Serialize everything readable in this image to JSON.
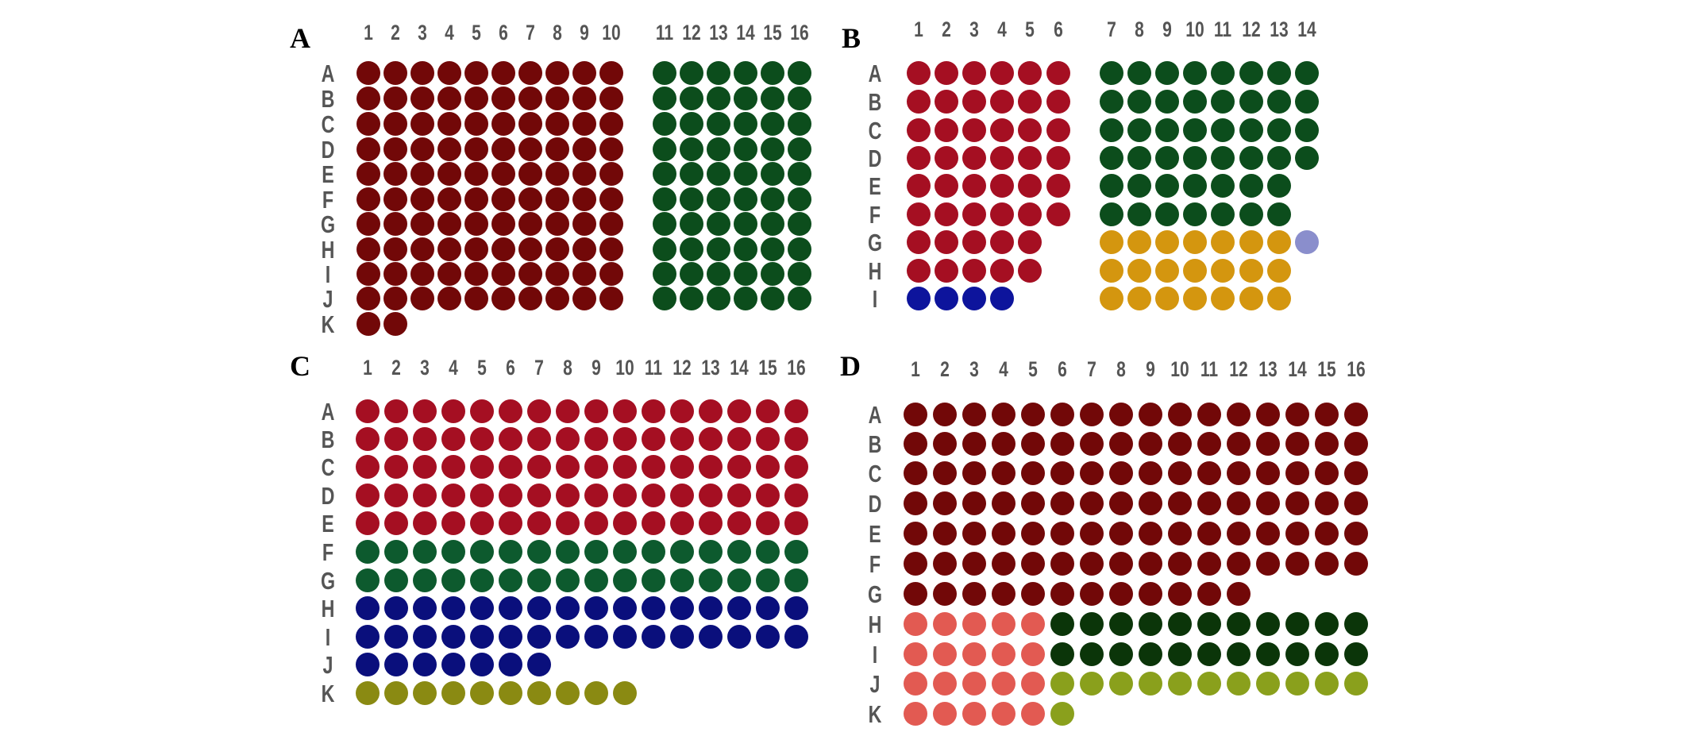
{
  "colors": {
    "dark_red": "#720808",
    "crimson": "#a50f22",
    "salmon": "#e25a52",
    "dark_green": "#0c4d1c",
    "very_dark_green": "#0b3509",
    "teal_green": "#0d5a2e",
    "navy": "#0a0f7c",
    "blue": "#0d149c",
    "amber": "#d4960f",
    "olive": "#8a8a12",
    "yellow_green": "#8aa01c",
    "lavender": "#8a8ecc"
  },
  "panels": [
    {
      "letter": "A",
      "columns": [
        "1",
        "2",
        "3",
        "4",
        "5",
        "6",
        "7",
        "8",
        "9",
        "10",
        "11",
        "12",
        "13",
        "14",
        "15",
        "16"
      ],
      "rows": [
        "A",
        "B",
        "C",
        "D",
        "E",
        "F",
        "G",
        "H",
        "I",
        "J",
        "K"
      ],
      "groups": [
        {
          "color": "dark_red",
          "rows": "A-J",
          "columns": "1-10"
        },
        {
          "color": "dark_red",
          "rows": "K",
          "columns": "1-2"
        },
        {
          "color": "dark_green",
          "rows": "A-J",
          "columns": "11-16"
        }
      ]
    },
    {
      "letter": "B",
      "columns": [
        "1",
        "2",
        "3",
        "4",
        "5",
        "6",
        "7",
        "8",
        "9",
        "10",
        "11",
        "12",
        "13",
        "14"
      ],
      "rows": [
        "A",
        "B",
        "C",
        "D",
        "E",
        "F",
        "G",
        "H",
        "I"
      ],
      "groups": [
        {
          "color": "crimson",
          "rows": "A-F",
          "columns": "1-6"
        },
        {
          "color": "crimson",
          "rows": "G-H",
          "columns": "1-5"
        },
        {
          "color": "blue",
          "rows": "I",
          "columns": "1-4"
        },
        {
          "color": "dark_green",
          "rows": "A-D",
          "columns": "7-14"
        },
        {
          "color": "dark_green",
          "rows": "E-F",
          "columns": "7-13"
        },
        {
          "color": "amber",
          "rows": "G-I",
          "columns": "7-13"
        },
        {
          "color": "lavender",
          "rows": "G",
          "columns": "14"
        }
      ]
    },
    {
      "letter": "C",
      "columns": [
        "1",
        "2",
        "3",
        "4",
        "5",
        "6",
        "7",
        "8",
        "9",
        "10",
        "11",
        "12",
        "13",
        "14",
        "15",
        "16"
      ],
      "rows": [
        "A",
        "B",
        "C",
        "D",
        "E",
        "F",
        "G",
        "H",
        "I",
        "J",
        "K"
      ],
      "groups": [
        {
          "color": "crimson",
          "rows": "A-E",
          "columns": "1-16"
        },
        {
          "color": "teal_green",
          "rows": "F-G",
          "columns": "1-16"
        },
        {
          "color": "navy",
          "rows": "H-I",
          "columns": "1-16"
        },
        {
          "color": "navy",
          "rows": "J",
          "columns": "1-7"
        },
        {
          "color": "olive",
          "rows": "K",
          "columns": "1-10"
        }
      ]
    },
    {
      "letter": "D",
      "columns": [
        "1",
        "2",
        "3",
        "4",
        "5",
        "6",
        "7",
        "8",
        "9",
        "10",
        "11",
        "12",
        "13",
        "14",
        "15",
        "16"
      ],
      "rows": [
        "A",
        "B",
        "C",
        "D",
        "E",
        "F",
        "G",
        "H",
        "I",
        "J",
        "K"
      ],
      "groups": [
        {
          "color": "dark_red",
          "rows": "A-F",
          "columns": "1-16"
        },
        {
          "color": "dark_red",
          "rows": "G",
          "columns": "1-12"
        },
        {
          "color": "salmon",
          "rows": "H-K",
          "columns": "1-5"
        },
        {
          "color": "very_dark_green",
          "rows": "H-I",
          "columns": "6-16"
        },
        {
          "color": "yellow_green",
          "rows": "J",
          "columns": "6-16"
        },
        {
          "color": "yellow_green",
          "rows": "K",
          "columns": "6"
        }
      ]
    }
  ]
}
